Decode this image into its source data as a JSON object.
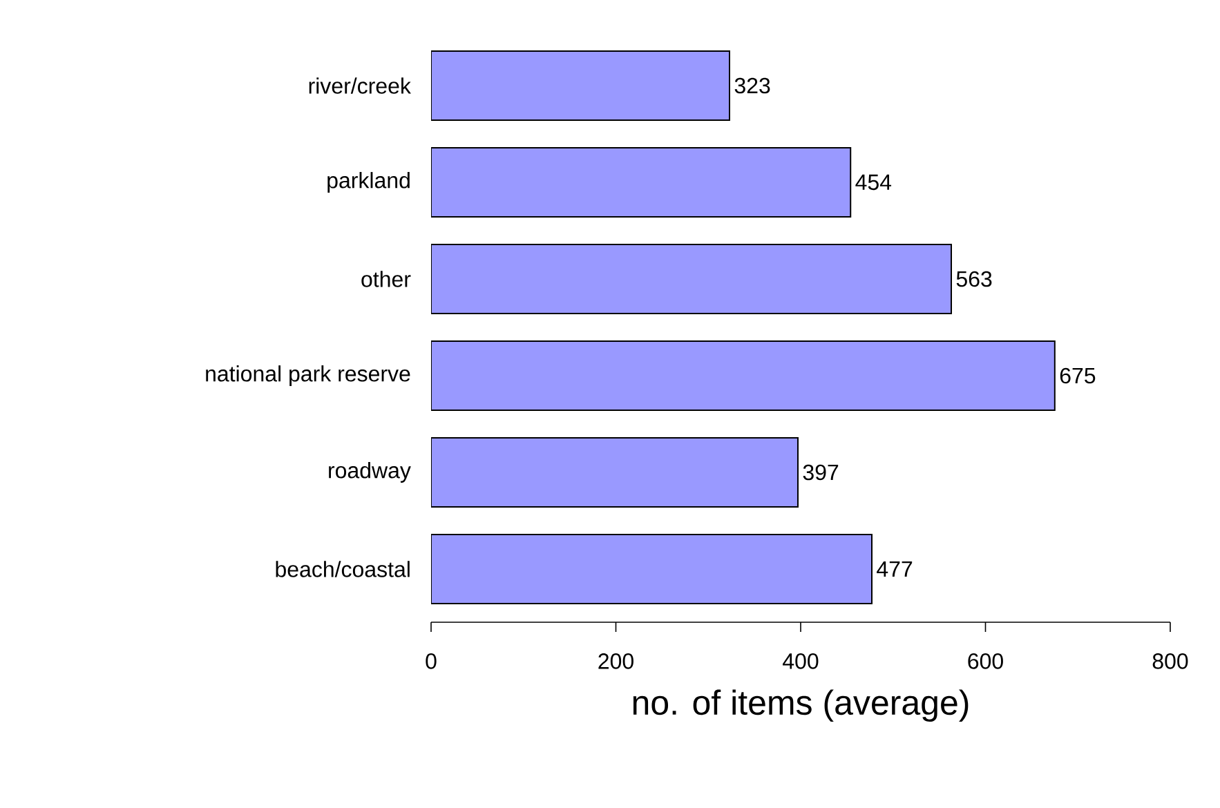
{
  "chart_data": {
    "type": "bar",
    "orientation": "horizontal",
    "xlabel": "no. of items (average)",
    "categories": [
      "river/creek",
      "parkland",
      "other",
      "national park reserve",
      "roadway",
      "beach/coastal"
    ],
    "values": [
      323,
      454,
      563,
      675,
      397,
      477
    ],
    "color": "#9999ff",
    "xlim": [
      0,
      800
    ],
    "xticks": [
      0,
      200,
      400,
      600,
      800
    ],
    "data_labels": true
  }
}
